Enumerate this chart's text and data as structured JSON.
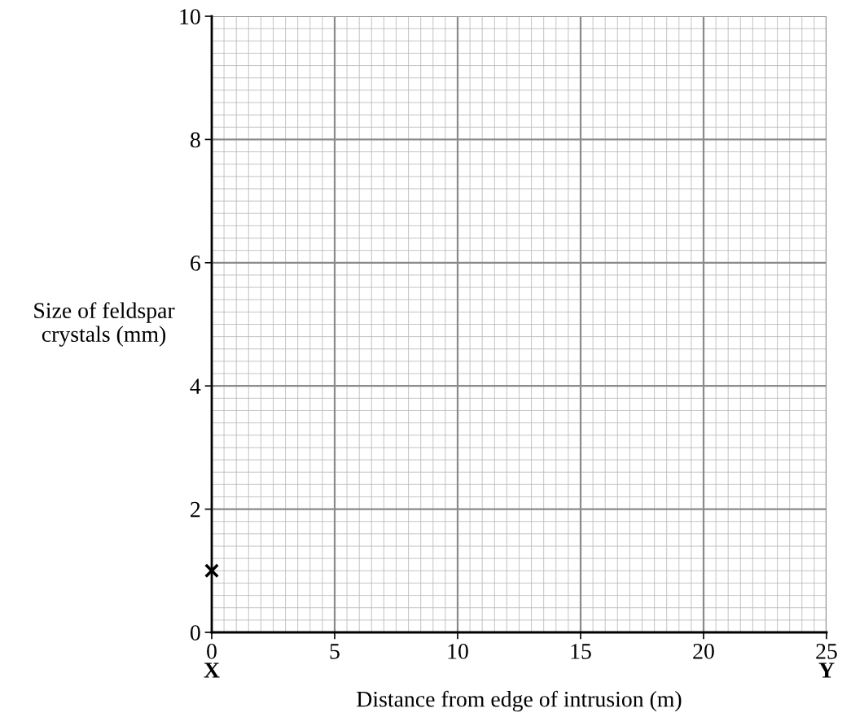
{
  "chart_data": {
    "type": "scatter",
    "xlabel": "Distance from edge of intrusion (m)",
    "ylabel": "Size of feldspar\ncrystals (mm)",
    "x": [
      0
    ],
    "values": [
      1
    ],
    "color": "#000000",
    "marker": "cross",
    "xlim": [
      0,
      25
    ],
    "xticks": [
      0,
      5,
      10,
      15,
      20,
      25
    ],
    "ylim": [
      0,
      10
    ],
    "yticks": [
      0,
      2,
      4,
      6,
      8,
      10
    ],
    "grid": true,
    "annotations": [
      "X",
      "Y"
    ]
  }
}
